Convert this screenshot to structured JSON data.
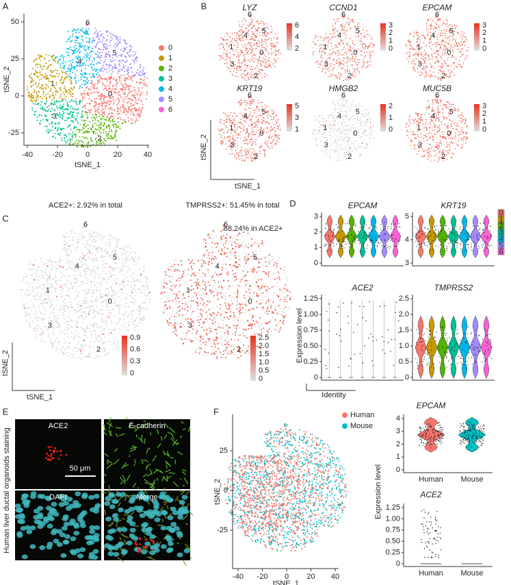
{
  "panels": {
    "a": {
      "letter": "A",
      "x_label": "tSNE_1",
      "y_label": "tSNE_2",
      "x_ticks": [
        "-40",
        "-20",
        "0",
        "20",
        "40"
      ],
      "y_ticks": [
        "50",
        "25",
        "0",
        "-25"
      ],
      "clusters": [
        "0",
        "1",
        "2",
        "3",
        "4",
        "5",
        "6"
      ],
      "colors": [
        "#F8766D",
        "#C49A00",
        "#53B400",
        "#00C094",
        "#00B6EB",
        "#A58AFF",
        "#FB61D7"
      ]
    },
    "b": {
      "letter": "B",
      "x_label": "tSNE_1",
      "y_label": "tSNE_2",
      "genes": [
        {
          "name": "LYZ",
          "scale": [
            "6",
            "4",
            "2"
          ]
        },
        {
          "name": "CCND1",
          "scale": [
            "3",
            "2",
            "1",
            "0"
          ]
        },
        {
          "name": "EPCAM",
          "scale": [
            "3",
            "2",
            "1",
            "0"
          ]
        },
        {
          "name": "KRT19",
          "scale": [
            "5",
            "3",
            "1"
          ]
        },
        {
          "name": "HMGB2",
          "scale": [
            "2",
            "1",
            "0"
          ]
        },
        {
          "name": "MUC5B",
          "scale": [
            "3",
            "2",
            "1",
            "0"
          ]
        }
      ]
    },
    "c": {
      "letter": "C",
      "left_title": "ACE2+: 2.92% in total",
      "right_title": "TMPRSS2+: 51.45% in total",
      "right_note": "68.24% in ACE2+",
      "x_label": "tSNE_1",
      "y_label": "tSNE_2",
      "left_scale": [
        "0.9",
        "0.6",
        "0.3",
        "0"
      ],
      "right_scale": [
        "2.5",
        "2.0",
        "1.5",
        "1.0",
        "0.5",
        "0"
      ]
    },
    "d": {
      "letter": "D",
      "y_label": "Expression level",
      "x_label": "Identity",
      "plots": [
        {
          "gene": "EPCAM",
          "ticks": [
            "0",
            "1",
            "2",
            "3"
          ]
        },
        {
          "gene": "KRT19",
          "ticks": [
            "3",
            "4",
            "5"
          ]
        },
        {
          "gene": "ACE2",
          "ticks": [
            "0",
            "0.25",
            "0.50",
            "0.75",
            "1.00",
            "1.25"
          ]
        },
        {
          "gene": "TMPRSS2",
          "ticks": [
            "0",
            "0.5",
            "1.0",
            "1.5",
            "2.0",
            "2.5"
          ]
        }
      ]
    },
    "e": {
      "letter": "E",
      "side_label": "Human liver ductal organoids staining",
      "images": [
        "ACE2",
        "E-cadherin",
        "DAPI",
        "Merge"
      ],
      "scale_bar": "50 μm"
    },
    "f": {
      "letter": "F",
      "x_label": "tSNE_1",
      "y_label": "tSNE_2",
      "x_ticks": [
        "-40",
        "-20",
        "0",
        "20",
        "40"
      ],
      "y_ticks": [
        "25",
        "0",
        "-25"
      ],
      "legend": [
        "Human",
        "Mouse"
      ],
      "colors": [
        "#F8766D",
        "#00BFC4"
      ],
      "violin_y_label": "Expression level",
      "violins": [
        {
          "gene": "EPCAM",
          "ticks": [
            "0",
            "1",
            "2",
            "3",
            "4"
          ]
        },
        {
          "gene": "ACE2",
          "ticks": [
            "0",
            "0.25",
            "0.50",
            "0.75",
            "1.00",
            "1.25"
          ]
        }
      ]
    }
  }
}
